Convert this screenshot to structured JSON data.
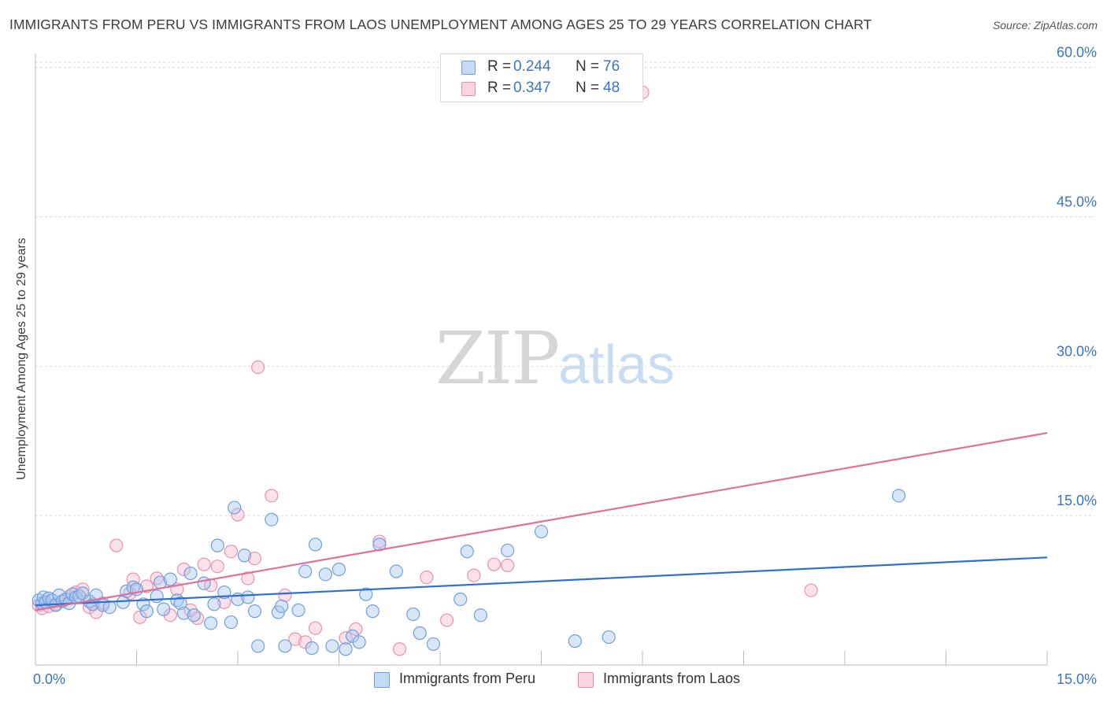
{
  "title": "IMMIGRANTS FROM PERU VS IMMIGRANTS FROM LAOS UNEMPLOYMENT AMONG AGES 25 TO 29 YEARS CORRELATION CHART",
  "source": "Source: ZipAtlas.com",
  "watermark": {
    "zip": "ZIP",
    "atlas": "atlas"
  },
  "colors": {
    "peru_fill": "#a9c8f0",
    "peru_stroke": "#6e9fe0",
    "peru_line": "#2f6fcf",
    "laos_fill": "#f7bfd1",
    "laos_stroke": "#ec8faf",
    "laos_line": "#e0709a",
    "grid": "#d9d9d9",
    "tick_text": "#3a74c4"
  },
  "legend": {
    "peru": {
      "r_label": "R =",
      "r_value": "0.244",
      "n_label": "N =",
      "n_value": "76"
    },
    "laos": {
      "r_label": "R =",
      "r_value": "0.347",
      "n_label": "N =",
      "n_value": "48"
    }
  },
  "bottom_legend": {
    "peru": "Immigrants from Peru",
    "laos": "Immigrants from Laos"
  },
  "chart_data": {
    "type": "scatter",
    "title": "IMMIGRANTS FROM PERU VS IMMIGRANTS FROM LAOS UNEMPLOYMENT AMONG AGES 25 TO 29 YEARS CORRELATION CHART",
    "xlabel": "",
    "ylabel": "Unemployment Among Ages 25 to 29 years",
    "xlim": [
      0,
      15
    ],
    "ylim": [
      0,
      61
    ],
    "x_tick_labels": [
      "0.0%",
      "15.0%"
    ],
    "y_ticks": [
      15,
      30,
      45,
      60
    ],
    "y_tick_labels": [
      "15.0%",
      "30.0%",
      "45.0%",
      "60.0%"
    ],
    "grid": true,
    "legend_position": "top-center",
    "series": [
      {
        "name": "Immigrants from Peru",
        "r": 0.244,
        "n": 76,
        "trend": {
          "x": [
            0,
            15
          ],
          "y": [
            6.0,
            10.8
          ]
        },
        "points": [
          [
            0.05,
            6.5
          ],
          [
            0.1,
            6.2
          ],
          [
            0.12,
            6.8
          ],
          [
            0.15,
            6.3
          ],
          [
            0.2,
            6.7
          ],
          [
            0.25,
            6.5
          ],
          [
            0.3,
            6.0
          ],
          [
            0.35,
            7.0
          ],
          [
            0.4,
            6.4
          ],
          [
            0.45,
            6.6
          ],
          [
            0.5,
            6.2
          ],
          [
            0.55,
            7.1
          ],
          [
            0.6,
            6.8
          ],
          [
            0.65,
            6.9
          ],
          [
            0.7,
            7.2
          ],
          [
            0.8,
            6.4
          ],
          [
            0.85,
            6.1
          ],
          [
            0.9,
            7.0
          ],
          [
            1.0,
            6.0
          ],
          [
            1.1,
            5.8
          ],
          [
            1.3,
            6.3
          ],
          [
            1.35,
            7.4
          ],
          [
            1.45,
            7.8
          ],
          [
            1.5,
            7.6
          ],
          [
            1.6,
            6.1
          ],
          [
            1.65,
            5.4
          ],
          [
            1.8,
            6.9
          ],
          [
            1.85,
            8.3
          ],
          [
            1.9,
            5.6
          ],
          [
            2.0,
            8.6
          ],
          [
            2.1,
            6.5
          ],
          [
            2.15,
            6.2
          ],
          [
            2.2,
            5.2
          ],
          [
            2.3,
            9.2
          ],
          [
            2.35,
            5.0
          ],
          [
            2.5,
            8.2
          ],
          [
            2.6,
            4.2
          ],
          [
            2.65,
            6.1
          ],
          [
            2.7,
            12.0
          ],
          [
            2.8,
            7.3
          ],
          [
            2.9,
            4.3
          ],
          [
            2.95,
            15.8
          ],
          [
            3.0,
            6.6
          ],
          [
            3.1,
            11.0
          ],
          [
            3.15,
            6.8
          ],
          [
            3.25,
            5.4
          ],
          [
            3.3,
            1.9
          ],
          [
            3.5,
            14.6
          ],
          [
            3.6,
            5.3
          ],
          [
            3.65,
            5.9
          ],
          [
            3.7,
            1.9
          ],
          [
            3.9,
            5.5
          ],
          [
            4.0,
            9.4
          ],
          [
            4.1,
            1.7
          ],
          [
            4.15,
            12.1
          ],
          [
            4.3,
            9.1
          ],
          [
            4.4,
            1.9
          ],
          [
            4.5,
            9.6
          ],
          [
            4.6,
            1.6
          ],
          [
            4.7,
            2.9
          ],
          [
            4.8,
            2.3
          ],
          [
            4.9,
            7.1
          ],
          [
            5.0,
            5.4
          ],
          [
            5.1,
            12.1
          ],
          [
            5.35,
            9.4
          ],
          [
            5.6,
            5.1
          ],
          [
            5.7,
            3.2
          ],
          [
            5.9,
            2.1
          ],
          [
            6.3,
            6.6
          ],
          [
            6.4,
            11.4
          ],
          [
            6.6,
            5.0
          ],
          [
            7.0,
            11.5
          ],
          [
            7.5,
            13.4
          ],
          [
            8.0,
            2.4
          ],
          [
            8.5,
            2.8
          ],
          [
            12.8,
            17.0
          ]
        ]
      },
      {
        "name": "Immigrants from Laos",
        "r": 0.347,
        "n": 48,
        "trend": {
          "x": [
            0,
            15
          ],
          "y": [
            5.5,
            23.3
          ]
        },
        "points": [
          [
            0.05,
            6.0
          ],
          [
            0.1,
            5.7
          ],
          [
            0.15,
            6.3
          ],
          [
            0.2,
            5.9
          ],
          [
            0.3,
            6.1
          ],
          [
            0.4,
            6.4
          ],
          [
            0.5,
            6.9
          ],
          [
            0.6,
            7.3
          ],
          [
            0.7,
            7.6
          ],
          [
            0.8,
            5.8
          ],
          [
            0.9,
            5.3
          ],
          [
            1.0,
            6.2
          ],
          [
            1.2,
            12.0
          ],
          [
            1.4,
            7.2
          ],
          [
            1.45,
            8.6
          ],
          [
            1.55,
            4.8
          ],
          [
            1.65,
            7.9
          ],
          [
            1.8,
            8.7
          ],
          [
            2.0,
            5.0
          ],
          [
            2.1,
            7.6
          ],
          [
            2.2,
            9.6
          ],
          [
            2.3,
            5.5
          ],
          [
            2.4,
            4.7
          ],
          [
            2.5,
            10.1
          ],
          [
            2.6,
            8.0
          ],
          [
            2.7,
            9.9
          ],
          [
            2.8,
            6.3
          ],
          [
            2.9,
            11.4
          ],
          [
            3.0,
            15.1
          ],
          [
            3.15,
            8.7
          ],
          [
            3.25,
            10.7
          ],
          [
            3.3,
            29.9
          ],
          [
            3.5,
            17.0
          ],
          [
            3.7,
            7.0
          ],
          [
            3.85,
            2.6
          ],
          [
            4.0,
            2.3
          ],
          [
            4.15,
            3.7
          ],
          [
            4.6,
            2.7
          ],
          [
            4.75,
            3.6
          ],
          [
            5.1,
            12.4
          ],
          [
            5.4,
            1.6
          ],
          [
            5.8,
            8.8
          ],
          [
            6.1,
            4.5
          ],
          [
            6.5,
            9.0
          ],
          [
            6.8,
            10.1
          ],
          [
            7.0,
            10.0
          ],
          [
            9.0,
            57.5
          ],
          [
            11.5,
            7.5
          ]
        ]
      }
    ]
  }
}
